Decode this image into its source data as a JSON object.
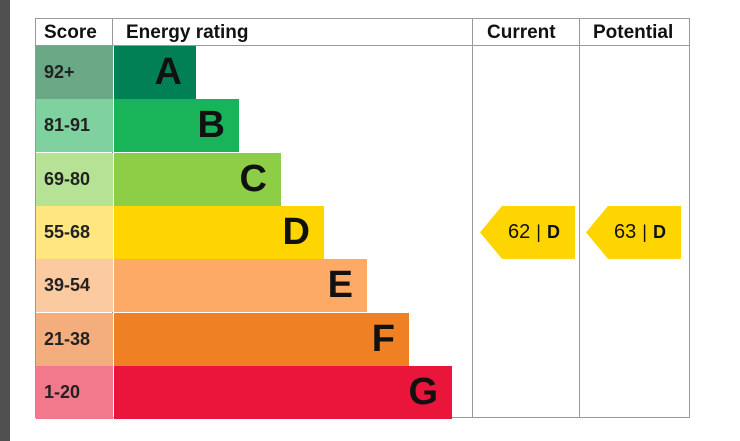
{
  "headers": {
    "score": "Score",
    "rating": "Energy rating",
    "current": "Current",
    "potential": "Potential"
  },
  "chart_data": {
    "type": "bar",
    "bands": [
      {
        "score": "92+",
        "letter": "A",
        "score_color": "#6aa886",
        "bar_color": "#008054"
      },
      {
        "score": "81-91",
        "letter": "B",
        "score_color": "#7fd19f",
        "bar_color": "#19b459"
      },
      {
        "score": "69-80",
        "letter": "C",
        "score_color": "#b5e294",
        "bar_color": "#8dce46"
      },
      {
        "score": "55-68",
        "letter": "D",
        "score_color": "#ffe680",
        "bar_color": "#ffd500"
      },
      {
        "score": "39-54",
        "letter": "E",
        "score_color": "#fccaa0",
        "bar_color": "#fcaa65"
      },
      {
        "score": "21-38",
        "letter": "F",
        "score_color": "#f4ad7d",
        "bar_color": "#ef8023"
      },
      {
        "score": "1-20",
        "letter": "G",
        "score_color": "#f2788c",
        "bar_color": "#e9153b"
      }
    ],
    "current": {
      "value": 62,
      "separator": "|",
      "letter": "D",
      "color": "#ffd500"
    },
    "potential": {
      "value": 63,
      "separator": "|",
      "letter": "D",
      "color": "#ffd500"
    }
  }
}
